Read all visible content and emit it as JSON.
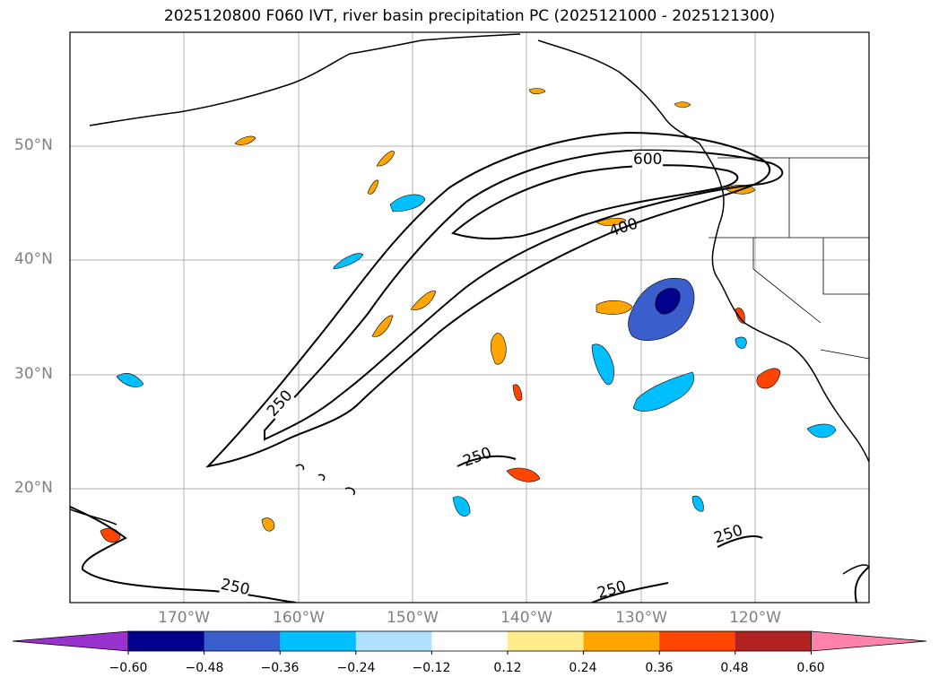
{
  "title": "2025120800 F060 IVT, river basin precipitation PC (2025121000 - 2025121300)",
  "map": {
    "lat_labels": [
      "50°N",
      "40°N",
      "30°N",
      "20°N"
    ],
    "lon_labels": [
      "170°W",
      "160°W",
      "150°W",
      "140°W",
      "130°W",
      "120°W"
    ],
    "contour_labels": [
      "600",
      "400",
      "250",
      "250",
      "250",
      "250",
      "250"
    ]
  },
  "colorbar": {
    "colors": [
      "#9932cc",
      "#00008b",
      "#3a5fcd",
      "#00bfff",
      "#b0e2ff",
      "#ffffff",
      "#ffec8b",
      "#ffa500",
      "#ff4500",
      "#b22222",
      "#ff82ab"
    ],
    "labels": [
      "−0.60",
      "−0.48",
      "−0.36",
      "−0.24",
      "−0.12",
      "0.12",
      "0.24",
      "0.36",
      "0.48",
      "0.60"
    ]
  }
}
